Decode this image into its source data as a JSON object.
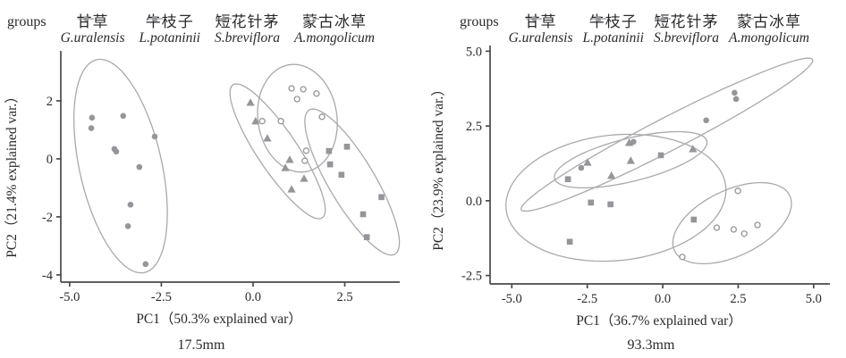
{
  "legend": {
    "title": "groups",
    "items": [
      {
        "cn": "甘草",
        "latin": "G.uralensis",
        "marker": "circle"
      },
      {
        "cn": "牛枝子",
        "latin": "L.potaninii",
        "marker": "square"
      },
      {
        "cn": "短花针茅",
        "latin": "S.breviflora",
        "marker": "triangle"
      },
      {
        "cn": "蒙古冰草",
        "latin": "A.mongolicum",
        "marker": "open-circle"
      }
    ]
  },
  "colors": {
    "marker": "#95959a",
    "ellipse": "#a9a9ad",
    "axis": "#4a4a4a",
    "text": "#2a2a2a"
  },
  "chart_data": [
    {
      "type": "scatter",
      "caption": "17.5mm",
      "xlabel": "PC1（50.3% explained var）",
      "ylabel": "PC2（21.4% explained var.）",
      "xlim": [
        -5.24,
        3.95
      ],
      "ylim": [
        -4.25,
        3.23
      ],
      "x_ticks": [
        {
          "v": -5,
          "label": "-5.0"
        },
        {
          "v": -2.5,
          "label": "-2.5"
        },
        {
          "v": 0,
          "label": "0.0"
        },
        {
          "v": 2.5,
          "label": "2.5"
        }
      ],
      "y_ticks": [
        {
          "v": 2,
          "label": "2"
        },
        {
          "v": 0,
          "label": "0"
        },
        {
          "v": -2,
          "label": "-2"
        },
        {
          "v": -4,
          "label": "-4"
        }
      ],
      "grid": false,
      "legend_position": "top",
      "series": [
        {
          "name_cn": "甘草",
          "name_latin": "G.uralensis",
          "marker": "circle",
          "points": [
            [
              -4.39,
              1.42
            ],
            [
              -4.41,
              1.06
            ],
            [
              -3.54,
              1.48
            ],
            [
              -2.68,
              0.77
            ],
            [
              -3.78,
              0.34
            ],
            [
              -3.73,
              0.25
            ],
            [
              -3.1,
              -0.28
            ],
            [
              -3.34,
              -1.58
            ],
            [
              -3.41,
              -2.32
            ],
            [
              -2.93,
              -3.63
            ]
          ],
          "ellipse": {
            "cx": -3.61,
            "cy": -0.25,
            "a": 3.73,
            "b": 1.13,
            "angle": 99.5
          }
        },
        {
          "name_cn": "牛枝子",
          "name_latin": "L.potaninii",
          "marker": "square",
          "points": [
            [
              2.07,
              0.27
            ],
            [
              2.56,
              0.42
            ],
            [
              2.1,
              -0.19
            ],
            [
              2.41,
              -0.55
            ],
            [
              3.5,
              -1.32
            ],
            [
              3.0,
              -1.91
            ],
            [
              3.1,
              -2.7
            ]
          ],
          "ellipse": {
            "cx": 2.7,
            "cy": -0.8,
            "a": 2.75,
            "b": 0.66,
            "angle": -65.5
          }
        },
        {
          "name_cn": "短花针茅",
          "name_latin": "S.breviflora",
          "marker": "triangle",
          "points": [
            [
              -0.07,
              1.94
            ],
            [
              0.07,
              1.3
            ],
            [
              0.39,
              0.71
            ],
            [
              1.0,
              -0.03
            ],
            [
              0.88,
              -0.31
            ],
            [
              1.39,
              -0.68
            ],
            [
              1.05,
              -1.05
            ]
          ],
          "ellipse": {
            "cx": 0.67,
            "cy": 0.26,
            "a": 2.6,
            "b": 0.58,
            "angle": -62.7
          }
        },
        {
          "name_cn": "蒙古冰草",
          "name_latin": "A.mongolicum",
          "marker": "open-circle",
          "points": [
            [
              1.05,
              2.43
            ],
            [
              1.37,
              2.4
            ],
            [
              1.2,
              2.06
            ],
            [
              1.73,
              2.25
            ],
            [
              0.25,
              1.3
            ],
            [
              0.76,
              1.3
            ],
            [
              1.88,
              1.45
            ],
            [
              1.45,
              0.28
            ],
            [
              1.41,
              -0.07
            ]
          ],
          "ellipse": {
            "cx": 1.21,
            "cy": 1.4,
            "a": 1.86,
            "b": 1.08,
            "angle": 94.7
          }
        }
      ]
    },
    {
      "type": "scatter",
      "caption": "93.3mm",
      "xlabel": "PC1（36.7% explained var）",
      "ylabel": "PC2（23.9% explained var.）",
      "xlim": [
        -5.72,
        5.48
      ],
      "ylim": [
        -2.78,
        5.07
      ],
      "x_ticks": [
        {
          "v": -5,
          "label": "-5.0"
        },
        {
          "v": -2.5,
          "label": "-2.5"
        },
        {
          "v": 0,
          "label": "0.0"
        },
        {
          "v": 2.5,
          "label": "2.5"
        },
        {
          "v": 5,
          "label": "5.0"
        }
      ],
      "y_ticks": [
        {
          "v": 5,
          "label": "5.0"
        },
        {
          "v": 2.5,
          "label": "2.5"
        },
        {
          "v": 0,
          "label": "0.0"
        },
        {
          "v": -2.5,
          "label": "-2.5"
        }
      ],
      "grid": false,
      "legend_position": "top",
      "series": [
        {
          "name_cn": "甘草",
          "name_latin": "G.uralensis",
          "marker": "circle",
          "points": [
            [
              2.38,
              3.61
            ],
            [
              2.43,
              3.4
            ],
            [
              1.44,
              2.69
            ],
            [
              -0.97,
              1.97
            ],
            [
              -2.7,
              1.1
            ]
          ],
          "ellipse": {
            "cx": 0.14,
            "cy": 2.21,
            "a": 5.44,
            "b": 0.55,
            "angle": 27.5
          }
        },
        {
          "name_cn": "牛枝子",
          "name_latin": "L.potaninii",
          "marker": "square",
          "points": [
            [
              -0.06,
              1.52
            ],
            [
              -3.14,
              0.72
            ],
            [
              -2.38,
              -0.06
            ],
            [
              -1.73,
              -0.12
            ],
            [
              1.03,
              -0.63
            ],
            [
              -3.08,
              -1.37
            ]
          ],
          "ellipse": {
            "cx": -1.55,
            "cy": 0.1,
            "a": 3.66,
            "b": 2.1,
            "angle": 6
          }
        },
        {
          "name_cn": "短花针茅",
          "name_latin": "S.breviflora",
          "marker": "triangle",
          "points": [
            [
              -1.11,
              1.94
            ],
            [
              1.0,
              1.73
            ],
            [
              -2.49,
              1.28
            ],
            [
              -1.06,
              1.34
            ],
            [
              -1.7,
              0.84
            ]
          ],
          "ellipse": {
            "cx": -1.06,
            "cy": 1.37,
            "a": 2.6,
            "b": 0.72,
            "angle": 14
          }
        },
        {
          "name_cn": "蒙古冰草",
          "name_latin": "A.mongolicum",
          "marker": "open-circle",
          "points": [
            [
              2.49,
              0.33
            ],
            [
              1.79,
              -0.9
            ],
            [
              2.35,
              -0.96
            ],
            [
              2.7,
              -1.1
            ],
            [
              3.14,
              -0.81
            ],
            [
              0.65,
              -1.88
            ]
          ],
          "ellipse": {
            "cx": 2.3,
            "cy": -0.75,
            "a": 2.12,
            "b": 1.1,
            "angle": 26
          }
        }
      ]
    }
  ]
}
